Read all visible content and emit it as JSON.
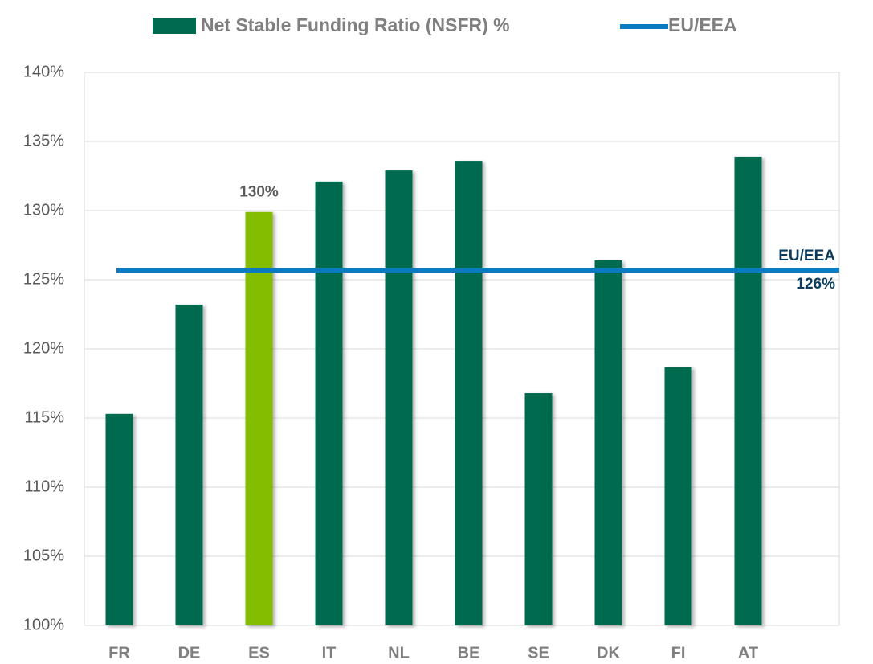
{
  "chart_data": {
    "type": "bar",
    "categories": [
      "FR",
      "DE",
      "ES",
      "IT",
      "NL",
      "BE",
      "SE",
      "DK",
      "FI",
      "AT"
    ],
    "series": [
      {
        "name": "Net Stable Funding Ratio (NSFR) %",
        "color": "#006a50",
        "point_colors": [
          "#006a50",
          "#006a50",
          "#84bd00",
          "#006a50",
          "#006a50",
          "#006a50",
          "#006a50",
          "#006a50",
          "#006a50",
          "#006a50"
        ],
        "values": [
          115.3,
          123.2,
          129.9,
          132.1,
          132.9,
          133.6,
          116.8,
          126.4,
          118.7,
          133.9
        ],
        "value_labels": [
          null,
          null,
          "130%",
          null,
          null,
          null,
          null,
          null,
          null,
          null
        ]
      },
      {
        "name": "EU/EEA",
        "type": "line",
        "color": "#0a7bc1",
        "value": 125.7,
        "value_label": "126%"
      }
    ],
    "ylim": [
      100,
      140
    ],
    "yticks": [
      {
        "value": 100,
        "label": "100%"
      },
      {
        "value": 105,
        "label": "105%"
      },
      {
        "value": 110,
        "label": "110%"
      },
      {
        "value": 115,
        "label": "115%"
      },
      {
        "value": 120,
        "label": "120%"
      },
      {
        "value": 125,
        "label": "125%"
      },
      {
        "value": 130,
        "label": "130%"
      },
      {
        "value": 135,
        "label": "135%"
      },
      {
        "value": 140,
        "label": "140%"
      }
    ],
    "grid": true,
    "legend": "top"
  }
}
